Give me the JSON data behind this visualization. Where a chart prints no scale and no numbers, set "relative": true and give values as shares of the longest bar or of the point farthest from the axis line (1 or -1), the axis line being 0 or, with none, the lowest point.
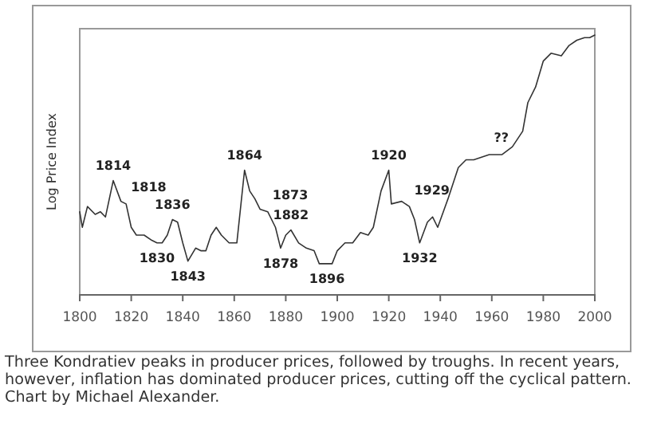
{
  "chart_data": {
    "type": "line",
    "ylabel": "Log Price Index",
    "relative": true,
    "xlim": [
      1800,
      2000
    ],
    "xticks": [
      1800,
      1820,
      1840,
      1860,
      1880,
      1900,
      1920,
      1940,
      1960,
      1980,
      2000
    ],
    "grid": false,
    "series": [
      {
        "color": "#333333",
        "x": [
          1800,
          1801,
          1803,
          1806,
          1808,
          1810,
          1813,
          1816,
          1818,
          1820,
          1822,
          1825,
          1828,
          1830,
          1832,
          1834,
          1836,
          1838,
          1840,
          1842,
          1845,
          1847,
          1849,
          1851,
          1853,
          1855,
          1858,
          1861,
          1864,
          1866,
          1868,
          1870,
          1873,
          1876,
          1878,
          1880,
          1882,
          1885,
          1888,
          1891,
          1893,
          1896,
          1898,
          1900,
          1903,
          1906,
          1909,
          1912,
          1914,
          1917,
          1920,
          1921,
          1925,
          1928,
          1930,
          1932,
          1935,
          1937,
          1939,
          1943,
          1947,
          1950,
          1953,
          1959,
          1964,
          1968,
          1972,
          1974,
          1977,
          1980,
          1983,
          1987,
          1990,
          1993,
          1996,
          1998,
          2000
        ],
        "values": [
          0.32,
          0.26,
          0.34,
          0.31,
          0.32,
          0.3,
          0.44,
          0.36,
          0.35,
          0.26,
          0.23,
          0.23,
          0.21,
          0.2,
          0.2,
          0.23,
          0.29,
          0.28,
          0.2,
          0.13,
          0.18,
          0.17,
          0.17,
          0.23,
          0.26,
          0.23,
          0.2,
          0.2,
          0.48,
          0.4,
          0.37,
          0.33,
          0.32,
          0.26,
          0.18,
          0.23,
          0.25,
          0.2,
          0.18,
          0.17,
          0.12,
          0.12,
          0.12,
          0.17,
          0.2,
          0.2,
          0.24,
          0.23,
          0.26,
          0.4,
          0.48,
          0.35,
          0.36,
          0.34,
          0.29,
          0.2,
          0.28,
          0.3,
          0.26,
          0.37,
          0.49,
          0.52,
          0.52,
          0.54,
          0.54,
          0.57,
          0.63,
          0.74,
          0.8,
          0.9,
          0.93,
          0.92,
          0.96,
          0.98,
          0.99,
          0.99,
          1
        ]
      }
    ],
    "annotations": [
      {
        "text": "1814",
        "x": 1813,
        "y": 0.44
      },
      {
        "text": "1818",
        "x": 1818,
        "y": 0.35
      },
      {
        "text": "1830",
        "x": 1830,
        "y": 0.2
      },
      {
        "text": "1836",
        "x": 1836,
        "y": 0.29
      },
      {
        "text": "1843",
        "x": 1842,
        "y": 0.13
      },
      {
        "text": "1864",
        "x": 1864,
        "y": 0.48
      },
      {
        "text": "1873",
        "x": 1873,
        "y": 0.32
      },
      {
        "text": "1882",
        "x": 1882,
        "y": 0.25
      },
      {
        "text": "1878",
        "x": 1878,
        "y": 0.18
      },
      {
        "text": "1896",
        "x": 1896,
        "y": 0.12
      },
      {
        "text": "1920",
        "x": 1920,
        "y": 0.48
      },
      {
        "text": "1929",
        "x": 1928,
        "y": 0.34
      },
      {
        "text": "1932",
        "x": 1932,
        "y": 0.2
      },
      {
        "text": "??",
        "x": 1959,
        "y": 0.54
      },
      "Three Kondratiev peaks in producer prices, followed by troughs. In recent years, however, inflation has dominated producer prices, cutting off the cyclical pattern. Chart by Michael Alexander."
    ]
  }
}
